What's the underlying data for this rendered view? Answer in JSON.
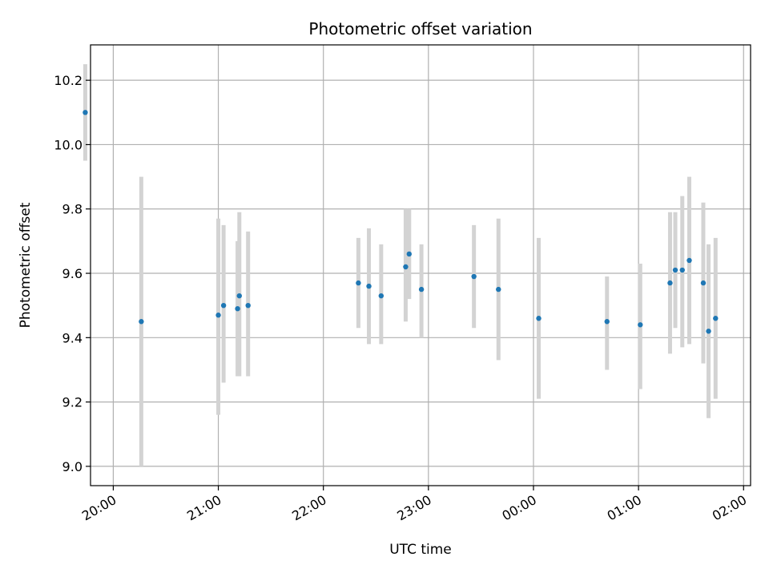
{
  "chart_data": {
    "type": "scatter",
    "title": "Photometric offset variation",
    "xlabel": "UTC time",
    "ylabel": "Photometric offset",
    "x_axis_kind": "time",
    "xlim": [
      "19:47",
      "02:04"
    ],
    "ylim": [
      8.94,
      10.31
    ],
    "x_ticks": [
      "20:00",
      "21:00",
      "22:00",
      "23:00",
      "00:00",
      "01:00",
      "02:00"
    ],
    "y_ticks": [
      9.0,
      9.2,
      9.4,
      9.6,
      9.8,
      10.0,
      10.2
    ],
    "grid": true,
    "legend": "none",
    "marker_color": "#1f77b4",
    "errorbar_color": "#d3d3d3",
    "points": [
      {
        "time": "19:44",
        "y": 10.1,
        "low": 9.95,
        "high": 10.25
      },
      {
        "time": "20:16",
        "y": 9.45,
        "low": 9.0,
        "high": 9.9
      },
      {
        "time": "21:00",
        "y": 9.47,
        "low": 9.16,
        "high": 9.77
      },
      {
        "time": "21:03",
        "y": 9.5,
        "low": 9.26,
        "high": 9.75
      },
      {
        "time": "21:11",
        "y": 9.49,
        "low": 9.28,
        "high": 9.7
      },
      {
        "time": "21:12",
        "y": 9.53,
        "low": 9.28,
        "high": 9.79
      },
      {
        "time": "21:17",
        "y": 9.5,
        "low": 9.28,
        "high": 9.73
      },
      {
        "time": "22:20",
        "y": 9.57,
        "low": 9.43,
        "high": 9.71
      },
      {
        "time": "22:26",
        "y": 9.56,
        "low": 9.38,
        "high": 9.74
      },
      {
        "time": "22:33",
        "y": 9.53,
        "low": 9.38,
        "high": 9.69
      },
      {
        "time": "22:47",
        "y": 9.62,
        "low": 9.45,
        "high": 9.8
      },
      {
        "time": "22:49",
        "y": 9.66,
        "low": 9.52,
        "high": 9.8
      },
      {
        "time": "22:56",
        "y": 9.55,
        "low": 9.4,
        "high": 9.69
      },
      {
        "time": "23:26",
        "y": 9.59,
        "low": 9.43,
        "high": 9.75
      },
      {
        "time": "23:40",
        "y": 9.55,
        "low": 9.33,
        "high": 9.77
      },
      {
        "time": "00:03",
        "y": 9.46,
        "low": 9.21,
        "high": 9.71
      },
      {
        "time": "00:42",
        "y": 9.45,
        "low": 9.3,
        "high": 9.59
      },
      {
        "time": "01:01",
        "y": 9.44,
        "low": 9.24,
        "high": 9.63
      },
      {
        "time": "01:18",
        "y": 9.57,
        "low": 9.35,
        "high": 9.79
      },
      {
        "time": "01:21",
        "y": 9.61,
        "low": 9.43,
        "high": 9.79
      },
      {
        "time": "01:25",
        "y": 9.61,
        "low": 9.37,
        "high": 9.84
      },
      {
        "time": "01:29",
        "y": 9.64,
        "low": 9.38,
        "high": 9.9
      },
      {
        "time": "01:37",
        "y": 9.57,
        "low": 9.32,
        "high": 9.82
      },
      {
        "time": "01:40",
        "y": 9.42,
        "low": 9.15,
        "high": 9.69
      },
      {
        "time": "01:44",
        "y": 9.46,
        "low": 9.21,
        "high": 9.71
      }
    ]
  }
}
